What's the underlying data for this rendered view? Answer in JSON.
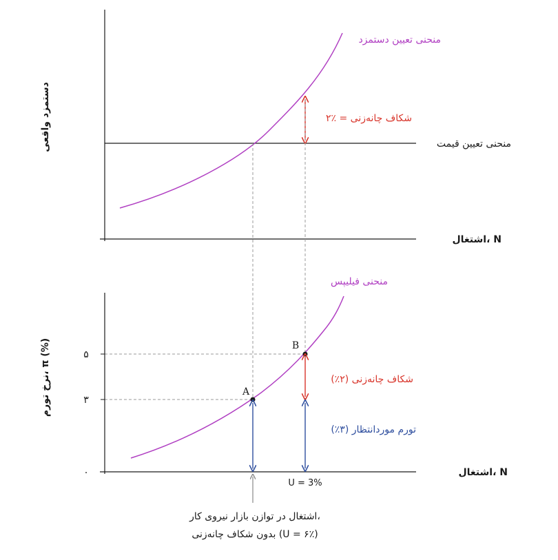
{
  "top_panel": {
    "y_axis_label": "دستمزد واقعی",
    "x_axis_label": "اشتغال، N",
    "wage_curve_label": "منحنی تعیین دستمزد",
    "price_curve_label": "منحنی تعیین قیمت",
    "gap_label": "۲٪ = شکاف چانه‌زنی"
  },
  "bottom_panel": {
    "y_axis_label": "نرخ تورم، π (%)",
    "x_axis_label": "اشتغال، N",
    "phillips_curve_label": "منحنی فیلیپس",
    "point_a": "A",
    "point_b": "B",
    "tick_5": "۵",
    "tick_3": "۳",
    "tick_0": "۰",
    "u_label": "U = 3%",
    "gap_label": "شکاف چانه‌زنی (۲٪)",
    "expected_label": "تورم موردانتظار (۳٪)"
  },
  "caption": {
    "line1": "اشتغال در توازن بازار نیروی کار،",
    "line2": "بدون شکاف چانه‌زنی (U = ۶٪)"
  },
  "colors": {
    "curve": "#b03fc2",
    "gap": "#d8342a",
    "expected": "#2e4e9e",
    "axis": "#1a1a1a",
    "dashed": "#9a9a9a"
  }
}
